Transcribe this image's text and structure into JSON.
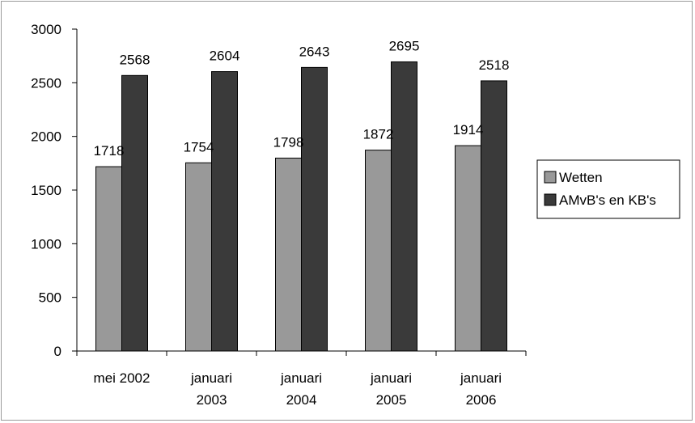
{
  "chart_data": {
    "type": "bar",
    "categories": [
      [
        "mei 2002"
      ],
      [
        "januari",
        "2003"
      ],
      [
        "januari",
        "2004"
      ],
      [
        "januari",
        "2005"
      ],
      [
        "januari",
        "2006"
      ]
    ],
    "series": [
      {
        "name": "Wetten",
        "values": [
          1718,
          1754,
          1798,
          1872,
          1914
        ],
        "color": "#999999"
      },
      {
        "name": "AMvB's en KB's",
        "values": [
          2568,
          2604,
          2643,
          2695,
          2518
        ],
        "color": "#3a3a3a"
      }
    ],
    "yticks": [
      0,
      500,
      1000,
      1500,
      2000,
      2500,
      3000
    ],
    "ylim": [
      0,
      3000
    ],
    "grid": false,
    "legend_position": "right",
    "data_labels": true,
    "title": "",
    "xlabel": "",
    "ylabel": ""
  }
}
